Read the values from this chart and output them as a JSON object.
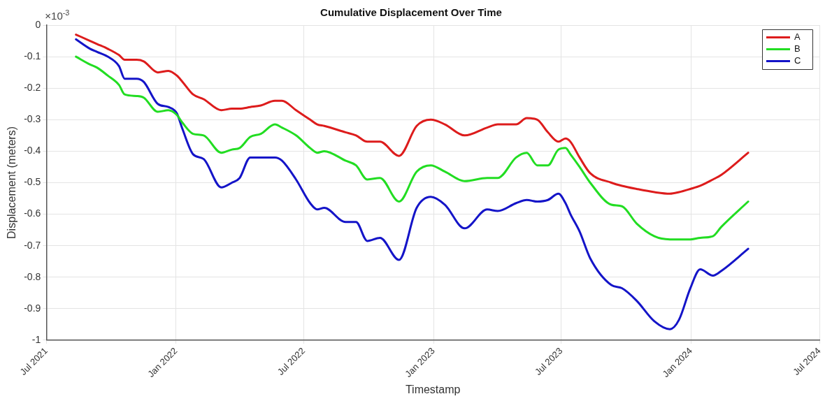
{
  "chart_data": {
    "type": "line",
    "title": "Cumulative Displacement Over Time",
    "xlabel": "Timestamp",
    "ylabel": "Displacement (meters)",
    "annotations": [
      "×10$^{-3}$"
    ],
    "x": [
      "2021-08-12",
      "2021-09-01",
      "2021-09-11",
      "2021-09-26",
      "2021-10-12",
      "2021-10-20",
      "2021-11-06",
      "2021-11-16",
      "2021-12-06",
      "2021-12-21",
      "2022-01-02",
      "2022-01-10",
      "2022-01-25",
      "2022-02-09",
      "2022-03-06",
      "2022-03-21",
      "2022-04-01",
      "2022-04-16",
      "2022-05-01",
      "2022-05-21",
      "2022-05-31",
      "2022-06-20",
      "2022-07-10",
      "2022-07-20",
      "2022-07-30",
      "2022-08-29",
      "2022-09-13",
      "2022-09-29",
      "2022-10-17",
      "2022-11-13",
      "2022-12-08",
      "2022-12-28",
      "2023-01-17",
      "2023-02-14",
      "2023-03-18",
      "2023-04-02",
      "2023-04-28",
      "2023-05-13",
      "2023-05-28",
      "2023-06-12",
      "2023-06-27",
      "2023-07-07",
      "2023-07-14",
      "2023-07-27",
      "2023-08-11",
      "2023-09-10",
      "2023-09-25",
      "2023-10-16",
      "2023-11-10",
      "2023-12-02",
      "2023-12-15",
      "2023-12-31",
      "2024-01-14",
      "2024-02-01",
      "2024-02-13",
      "2024-03-22"
    ],
    "series": [
      {
        "name": "A",
        "color": "#dd1c1c",
        "values": [
          -0.03,
          -0.05,
          -0.06,
          -0.075,
          -0.095,
          -0.11,
          -0.11,
          -0.115,
          -0.15,
          -0.145,
          -0.16,
          -0.18,
          -0.22,
          -0.235,
          -0.27,
          -0.265,
          -0.265,
          -0.26,
          -0.255,
          -0.24,
          -0.24,
          -0.27,
          -0.3,
          -0.315,
          -0.32,
          -0.34,
          -0.35,
          -0.37,
          -0.37,
          -0.415,
          -0.32,
          -0.3,
          -0.315,
          -0.35,
          -0.325,
          -0.315,
          -0.315,
          -0.295,
          -0.3,
          -0.34,
          -0.37,
          -0.36,
          -0.37,
          -0.42,
          -0.47,
          -0.5,
          -0.51,
          -0.52,
          -0.53,
          -0.535,
          -0.53,
          -0.52,
          -0.51,
          -0.49,
          -0.475,
          -0.405
        ]
      },
      {
        "name": "B",
        "color": "#22dd22",
        "values": [
          -0.1,
          -0.125,
          -0.135,
          -0.16,
          -0.19,
          -0.22,
          -0.225,
          -0.23,
          -0.275,
          -0.27,
          -0.285,
          -0.31,
          -0.345,
          -0.35,
          -0.405,
          -0.395,
          -0.39,
          -0.355,
          -0.345,
          -0.315,
          -0.325,
          -0.35,
          -0.39,
          -0.405,
          -0.4,
          -0.43,
          -0.445,
          -0.49,
          -0.485,
          -0.56,
          -0.465,
          -0.445,
          -0.465,
          -0.495,
          -0.485,
          -0.485,
          -0.42,
          -0.405,
          -0.445,
          -0.445,
          -0.395,
          -0.39,
          -0.41,
          -0.45,
          -0.5,
          -0.57,
          -0.575,
          -0.63,
          -0.67,
          -0.68,
          -0.68,
          -0.68,
          -0.675,
          -0.67,
          -0.64,
          -0.56
        ]
      },
      {
        "name": "C",
        "color": "#1414c8",
        "values": [
          -0.045,
          -0.075,
          -0.085,
          -0.1,
          -0.13,
          -0.17,
          -0.17,
          -0.18,
          -0.25,
          -0.26,
          -0.28,
          -0.33,
          -0.41,
          -0.425,
          -0.515,
          -0.5,
          -0.485,
          -0.42,
          -0.42,
          -0.42,
          -0.43,
          -0.49,
          -0.565,
          -0.585,
          -0.58,
          -0.625,
          -0.625,
          -0.685,
          -0.675,
          -0.745,
          -0.58,
          -0.545,
          -0.57,
          -0.645,
          -0.585,
          -0.59,
          -0.565,
          -0.555,
          -0.56,
          -0.555,
          -0.535,
          -0.565,
          -0.6,
          -0.655,
          -0.74,
          -0.825,
          -0.835,
          -0.875,
          -0.94,
          -0.965,
          -0.935,
          -0.835,
          -0.775,
          -0.795,
          -0.78,
          -0.71
        ]
      }
    ],
    "xlim": [
      "2021-07-01",
      "2024-07-01"
    ],
    "xticks": [
      {
        "value": "2021-07-01",
        "label": "Jul 2021"
      },
      {
        "value": "2022-01-01",
        "label": "Jan 2022"
      },
      {
        "value": "2022-07-01",
        "label": "Jul 2022"
      },
      {
        "value": "2023-01-01",
        "label": "Jan 2023"
      },
      {
        "value": "2023-07-01",
        "label": "Jul 2023"
      },
      {
        "value": "2024-01-01",
        "label": "Jan 2024"
      },
      {
        "value": "2024-07-01",
        "label": "Jul 2024"
      }
    ],
    "ylim": [
      -1,
      0
    ],
    "yticks": [
      -1,
      -0.9,
      -0.8,
      -0.7,
      -0.6,
      -0.5,
      -0.4,
      -0.3,
      -0.2,
      -0.1,
      0
    ],
    "grid": true,
    "legend": "top right",
    "marker": "none",
    "line_style": "solid"
  }
}
